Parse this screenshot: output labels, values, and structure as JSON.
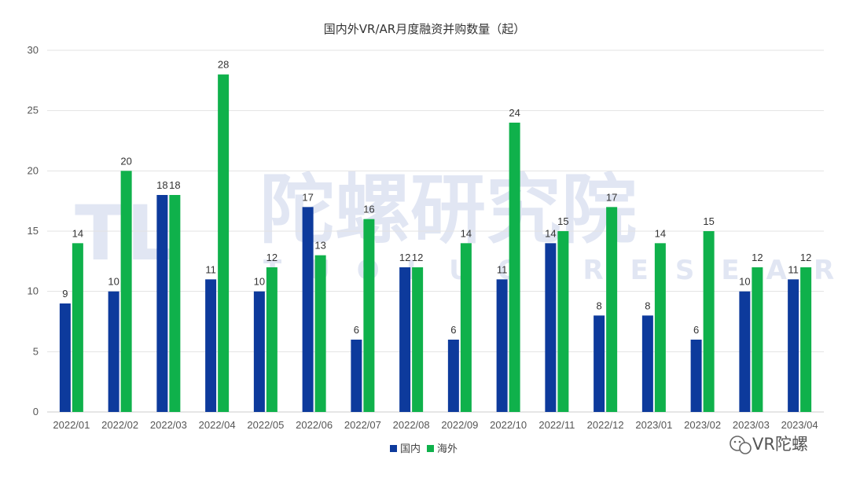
{
  "chart_data": {
    "type": "bar",
    "title": "国内外VR/AR月度融资并购数量（起）",
    "categories": [
      "2022/01",
      "2022/02",
      "2022/03",
      "2022/04",
      "2022/05",
      "2022/06",
      "2022/07",
      "2022/08",
      "2022/09",
      "2022/10",
      "2022/11",
      "2022/12",
      "2023/01",
      "2023/02",
      "2023/03",
      "2023/04"
    ],
    "series": [
      {
        "name": "国内",
        "color": "#0d3a9c",
        "values": [
          9,
          10,
          18,
          11,
          10,
          17,
          6,
          12,
          6,
          11,
          14,
          8,
          8,
          6,
          10,
          11
        ]
      },
      {
        "name": "海外",
        "color": "#0fb14b",
        "values": [
          14,
          20,
          18,
          28,
          12,
          13,
          16,
          12,
          14,
          24,
          15,
          17,
          14,
          15,
          12,
          12
        ]
      }
    ],
    "ylim": [
      0,
      30
    ],
    "yticks": [
      0,
      5,
      10,
      15,
      20,
      25,
      30
    ],
    "grid": true,
    "legend_position": "bottom"
  },
  "watermark": {
    "logo_text": "TL",
    "cn_text": "陀螺研究院",
    "en_text": "TUOLUO RESEARCH"
  },
  "wechat_badge": {
    "icon": "wechat-icon",
    "text": "VR陀螺"
  }
}
